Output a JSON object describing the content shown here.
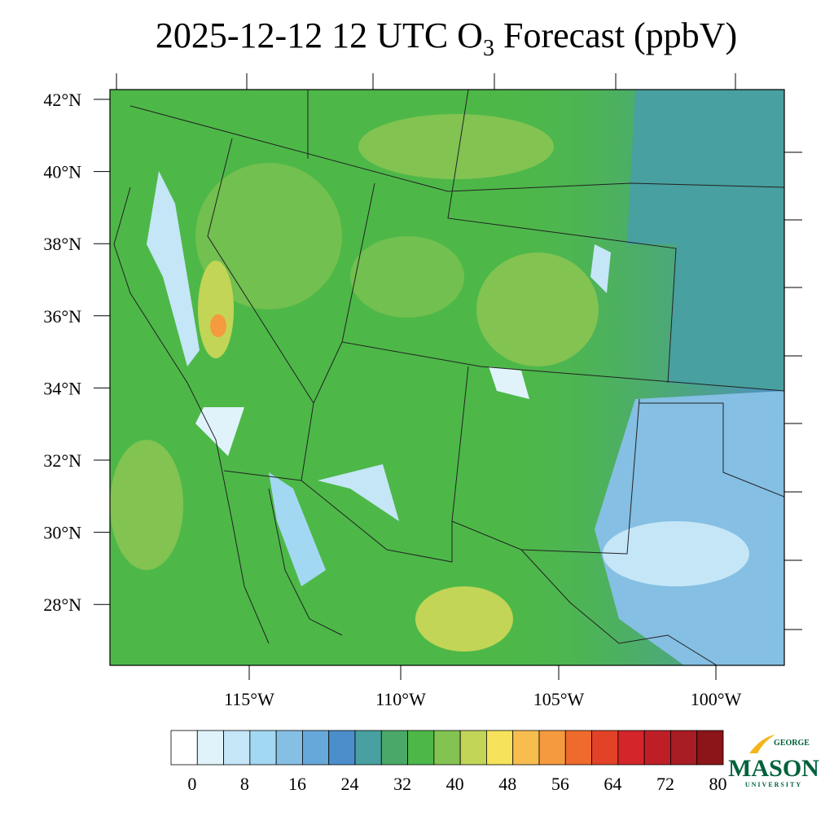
{
  "title": {
    "prefix": "2025-12-12 12 UTC O",
    "subscript": "3",
    "suffix": " Forecast (ppbV)"
  },
  "lat_labels": [
    "42°N",
    "40°N",
    "38°N",
    "36°N",
    "34°N",
    "32°N",
    "30°N",
    "28°N"
  ],
  "lon_labels": [
    "115°W",
    "110°W",
    "105°W",
    "100°W"
  ],
  "colorbar": {
    "colors": [
      "#ffffff",
      "#e0f3fb",
      "#c4e6f7",
      "#a3d8f2",
      "#85bfe3",
      "#67a8da",
      "#4b8ecb",
      "#48a0a0",
      "#4aa868",
      "#4db848",
      "#82c352",
      "#c2d556",
      "#f6e35b",
      "#f8bd4f",
      "#f59a3e",
      "#ef6a2d",
      "#e24228",
      "#d3252a",
      "#be1f27",
      "#a81c23",
      "#8b1518"
    ],
    "labels": [
      "0",
      "8",
      "16",
      "24",
      "32",
      "40",
      "48",
      "56",
      "64",
      "72",
      "80"
    ]
  },
  "logo": {
    "top": "GEORGE",
    "main": "MASON",
    "bottom": "UNIVERSITY"
  }
}
